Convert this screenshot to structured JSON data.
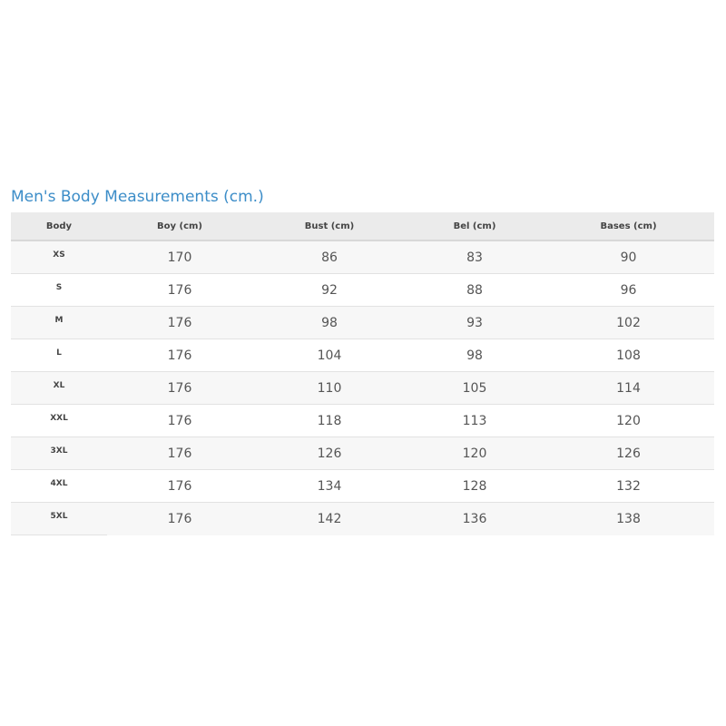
{
  "title": "Men's Body Measurements (cm.)",
  "table": {
    "headers": [
      "Body",
      "Boy (cm)",
      "Bust (cm)",
      "Bel (cm)",
      "Bases (cm)"
    ],
    "rows": [
      [
        "XS",
        "170",
        "86",
        "83",
        "90"
      ],
      [
        "S",
        "176",
        "92",
        "88",
        "96"
      ],
      [
        "M",
        "176",
        "98",
        "93",
        "102"
      ],
      [
        "L",
        "176",
        "104",
        "98",
        "108"
      ],
      [
        "XL",
        "176",
        "110",
        "105",
        "114"
      ],
      [
        "XXL",
        "176",
        "118",
        "113",
        "120"
      ],
      [
        "3XL",
        "176",
        "126",
        "120",
        "126"
      ],
      [
        "4XL",
        "176",
        "134",
        "128",
        "132"
      ],
      [
        "5XL",
        "176",
        "142",
        "136",
        "138"
      ]
    ]
  },
  "colors": {
    "title": "#3c8dc8",
    "header_bg": "#ebebeb",
    "stripe_bg": "#f7f7f7"
  }
}
